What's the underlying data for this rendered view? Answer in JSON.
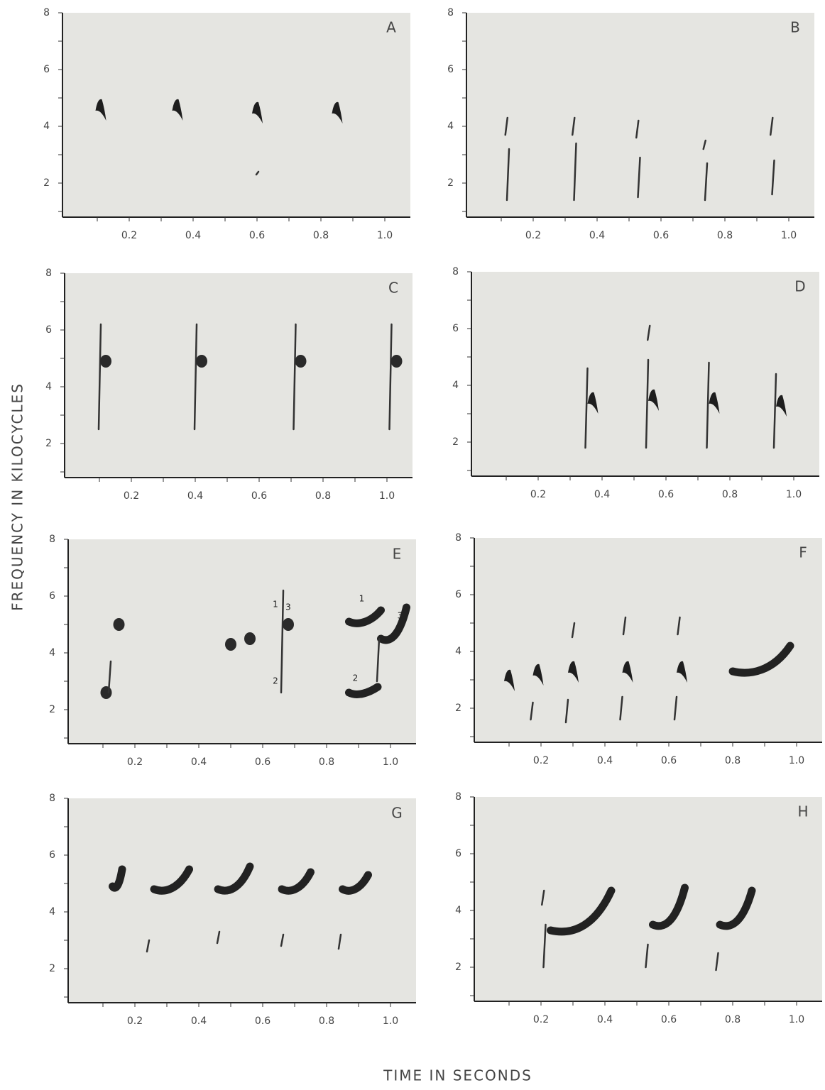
{
  "figure": {
    "y_axis_label": "FREQUENCY IN KILOCYCLES",
    "x_axis_label": "TIME IN SECONDS",
    "panels": [
      {
        "label": "A",
        "yticks": [
          "2",
          "4",
          "6",
          "8"
        ],
        "xticks": [
          "0.2",
          "0.4",
          "0.6",
          "0.8",
          "1.0"
        ]
      },
      {
        "label": "B",
        "yticks": [
          "2",
          "4",
          "6",
          "8"
        ],
        "xticks": [
          "0.2",
          "0.4",
          "0.6",
          "0.8",
          "1.0"
        ]
      },
      {
        "label": "C",
        "yticks": [
          "2",
          "4",
          "6",
          "8"
        ],
        "xticks": [
          "0.2",
          "0.4",
          "0.6",
          "0.8",
          "1.0"
        ]
      },
      {
        "label": "D",
        "yticks": [
          "2",
          "4",
          "6",
          "8"
        ],
        "xticks": [
          "0.2",
          "0.4",
          "0.6",
          "0.8",
          "1.0"
        ]
      },
      {
        "label": "E",
        "yticks": [
          "2",
          "4",
          "6",
          "8"
        ],
        "xticks": [
          "0.2",
          "0.4",
          "0.6",
          "0.8",
          "1.0"
        ],
        "annotations": [
          "1",
          "3",
          "2",
          "1",
          "3",
          "2"
        ]
      },
      {
        "label": "F",
        "yticks": [
          "2",
          "4",
          "6",
          "8"
        ],
        "xticks": [
          "0.2",
          "0.4",
          "0.6",
          "0.8",
          "1.0"
        ]
      },
      {
        "label": "G",
        "yticks": [
          "2",
          "4",
          "6",
          "8"
        ],
        "xticks": [
          "0.2",
          "0.4",
          "0.6",
          "0.8",
          "1.0"
        ]
      },
      {
        "label": "H",
        "yticks": [
          "2",
          "4",
          "6",
          "8"
        ],
        "xticks": [
          "0.2",
          "0.4",
          "0.6",
          "0.8",
          "1.0"
        ]
      }
    ]
  }
}
